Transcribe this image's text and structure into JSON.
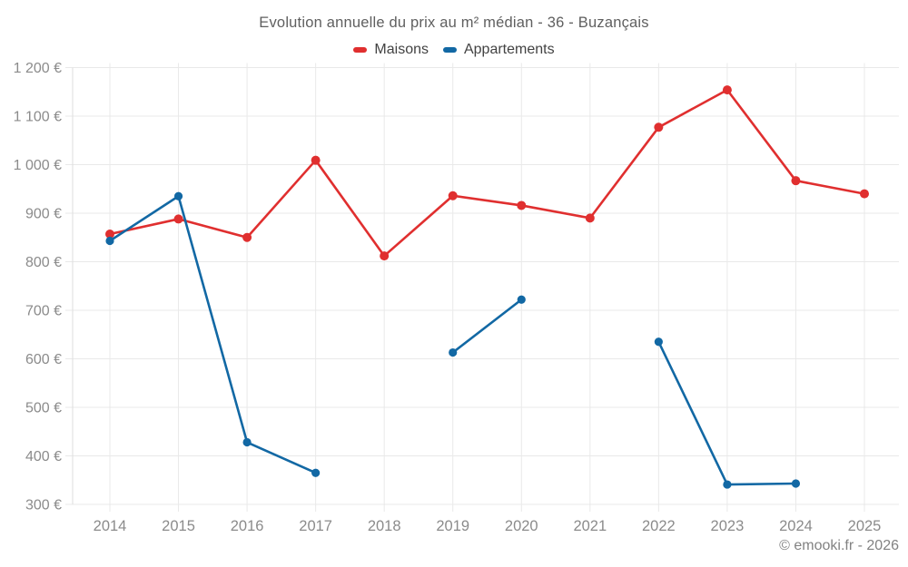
{
  "chart_data": {
    "type": "line",
    "title": "Evolution annuelle du prix au m² médian - 36 - Buzançais",
    "categories": [
      2014,
      2015,
      2016,
      2017,
      2018,
      2019,
      2020,
      2021,
      2022,
      2023,
      2024,
      2025
    ],
    "series": [
      {
        "name": "Maisons",
        "color": "#e02f2f",
        "values": [
          857,
          888,
          850,
          1009,
          812,
          936,
          916,
          890,
          1077,
          1154,
          967,
          940
        ]
      },
      {
        "name": "Appartements",
        "color": "#1268a4",
        "values": [
          843,
          935,
          428,
          365,
          null,
          613,
          722,
          null,
          635,
          341,
          343,
          null
        ]
      }
    ],
    "ylim": [
      300,
      1200
    ],
    "ytick_step": 100,
    "y_unit": "€",
    "grid": true,
    "legend_position": "top",
    "colors": {
      "grid": "#e9e9e9",
      "axis": "#dedede",
      "tick_label": "#8b8b8b"
    }
  },
  "footer": {
    "credit": "© emooki.fr - 2026"
  }
}
